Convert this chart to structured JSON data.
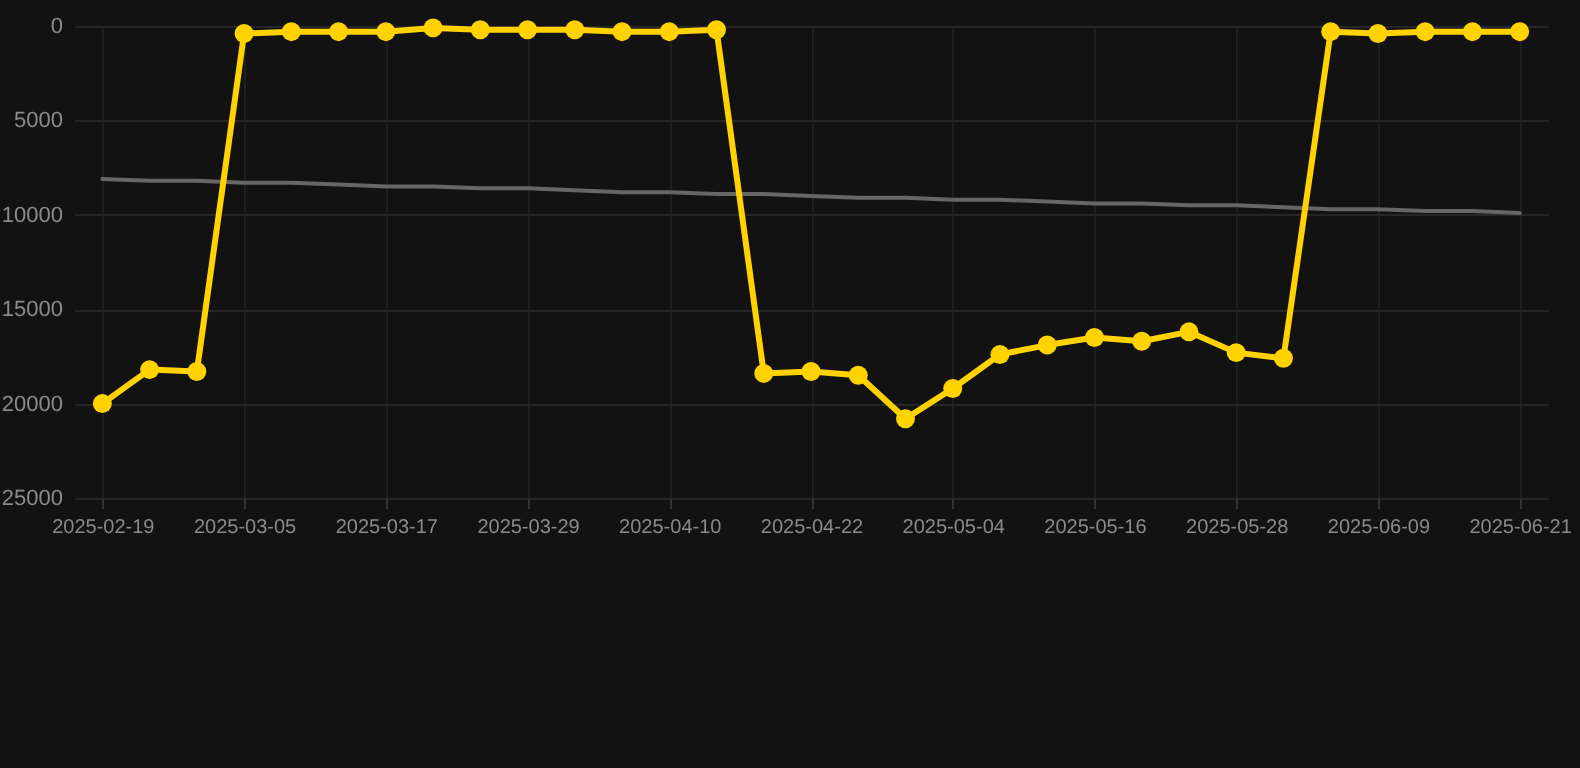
{
  "chart_data": {
    "type": "line",
    "categories": [
      "2025-02-19",
      null,
      null,
      "2025-03-05",
      null,
      null,
      "2025-03-17",
      null,
      null,
      "2025-03-29",
      null,
      null,
      "2025-04-10",
      null,
      null,
      "2025-04-22",
      null,
      null,
      "2025-05-04",
      null,
      null,
      "2025-05-16",
      null,
      null,
      "2025-05-28",
      null,
      null,
      "2025-06-09",
      null,
      null,
      "2025-06-21"
    ],
    "series": [
      {
        "color": "#ffd200",
        "values": [
          20000,
          18200,
          18300,
          400,
          300,
          300,
          300,
          100,
          200,
          200,
          200,
          300,
          300,
          200,
          18400,
          18300,
          18500,
          20800,
          19200,
          17400,
          16900,
          16500,
          16700,
          16200,
          17300,
          17600,
          300,
          400,
          300,
          300,
          300
        ]
      },
      {
        "type": "line",
        "marker": "none",
        "color": "#666666",
        "values": [
          8100,
          8200,
          8200,
          8300,
          8300,
          8400,
          8500,
          8500,
          8600,
          8600,
          8700,
          8800,
          8800,
          8900,
          8900,
          9000,
          9100,
          9100,
          9200,
          9200,
          9300,
          9400,
          9400,
          9500,
          9500,
          9600,
          9700,
          9700,
          9800,
          9800,
          9900
        ]
      }
    ],
    "ylim": [
      25000,
      0
    ],
    "yticks": [
      0,
      5000,
      10000,
      15000,
      20000,
      25000
    ],
    "grid": true,
    "marker": "circle",
    "line_style": "solid"
  }
}
